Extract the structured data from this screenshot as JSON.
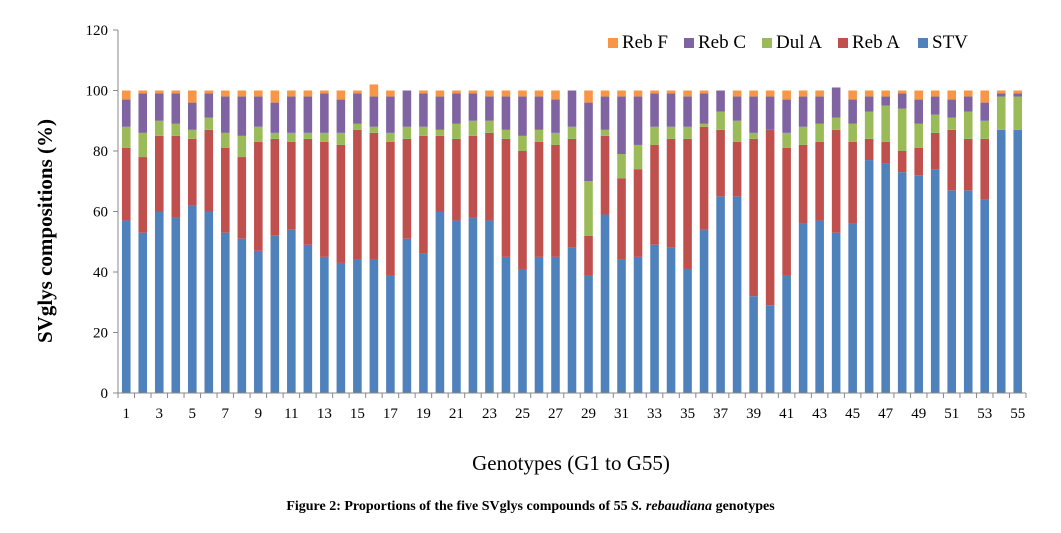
{
  "chart_data": {
    "type": "stacked-bar",
    "ylabel": "SVglys compositions (%)",
    "xlabel": "Genotypes (G1 to G55)",
    "ylim": [
      0,
      120
    ],
    "yticks": [
      0,
      20,
      40,
      60,
      80,
      100,
      120
    ],
    "x_tick_labels": [
      "1",
      "3",
      "5",
      "7",
      "9",
      "11",
      "13",
      "15",
      "17",
      "19",
      "21",
      "23",
      "25",
      "27",
      "29",
      "31",
      "33",
      "35",
      "37",
      "39",
      "41",
      "43",
      "45",
      "47",
      "49",
      "51",
      "53",
      "55"
    ],
    "legend_position": "top-right",
    "grid": false,
    "categories": [
      "1",
      "2",
      "3",
      "4",
      "5",
      "6",
      "7",
      "8",
      "9",
      "10",
      "11",
      "12",
      "13",
      "14",
      "15",
      "16",
      "17",
      "18",
      "19",
      "20",
      "21",
      "22",
      "23",
      "24",
      "25",
      "26",
      "27",
      "28",
      "29",
      "30",
      "31",
      "32",
      "33",
      "34",
      "35",
      "36",
      "37",
      "38",
      "39",
      "40",
      "41",
      "42",
      "43",
      "44",
      "45",
      "46",
      "47",
      "48",
      "49",
      "50",
      "51",
      "52",
      "53",
      "54",
      "55"
    ],
    "series": [
      {
        "name": "STV",
        "color": "#4f81bd",
        "values": [
          57,
          53,
          60,
          58,
          62,
          60,
          53,
          51,
          47,
          52,
          54,
          49,
          45,
          43,
          44,
          44,
          39,
          51,
          46,
          60,
          57,
          58,
          57,
          45,
          41,
          45,
          45,
          48,
          39,
          59,
          44,
          45,
          49,
          48,
          41,
          54,
          65,
          65,
          32,
          29,
          39,
          56,
          57,
          53,
          56,
          77,
          76,
          73,
          72,
          74,
          67,
          67,
          64,
          87,
          87
        ]
      },
      {
        "name": "Reb A",
        "color": "#c0504d",
        "values": [
          24,
          25,
          25,
          27,
          22,
          27,
          28,
          27,
          36,
          32,
          29,
          35,
          38,
          39,
          43,
          42,
          44,
          33,
          39,
          25,
          27,
          27,
          29,
          39,
          39,
          38,
          37,
          36,
          13,
          26,
          27,
          29,
          33,
          36,
          43,
          34,
          22,
          18,
          52,
          58,
          42,
          26,
          26,
          34,
          27,
          7,
          7,
          7,
          9,
          12,
          20,
          17,
          20,
          0,
          0
        ]
      },
      {
        "name": "Dul A",
        "color": "#9bbb59",
        "values": [
          7,
          8,
          5,
          4,
          3,
          4,
          5,
          7,
          5,
          2,
          3,
          2,
          3,
          4,
          2,
          2,
          3,
          4,
          3,
          2,
          5,
          5,
          4,
          3,
          5,
          4,
          4,
          4,
          18,
          2,
          8,
          8,
          6,
          4,
          4,
          1,
          6,
          7,
          2,
          0,
          5,
          6,
          6,
          4,
          6,
          9,
          12,
          14,
          8,
          6,
          4,
          9,
          6,
          11,
          11
        ]
      },
      {
        "name": "Reb C",
        "color": "#8064a2",
        "values": [
          9,
          13,
          9,
          10,
          9,
          8,
          12,
          13,
          10,
          10,
          12,
          12,
          13,
          11,
          10,
          10,
          12,
          12,
          11,
          11,
          10,
          9,
          8,
          11,
          13,
          11,
          11,
          12,
          26,
          11,
          19,
          16,
          11,
          11,
          10,
          10,
          7,
          8,
          12,
          11,
          11,
          10,
          9,
          10,
          8,
          5,
          3,
          5,
          8,
          6,
          6,
          5,
          6,
          1,
          1
        ]
      },
      {
        "name": "Reb F",
        "color": "#f79646",
        "values": [
          3,
          1,
          1,
          1,
          4,
          1,
          2,
          2,
          2,
          4,
          2,
          2,
          1,
          3,
          1,
          4,
          2,
          0,
          1,
          2,
          1,
          1,
          2,
          2,
          2,
          2,
          3,
          0,
          4,
          2,
          2,
          2,
          1,
          1,
          2,
          1,
          0,
          2,
          2,
          2,
          3,
          2,
          2,
          0,
          3,
          2,
          2,
          1,
          3,
          2,
          3,
          2,
          4,
          1,
          1
        ]
      }
    ],
    "legend_order": [
      "Reb F",
      "Reb C",
      "Dul A",
      "Reb A",
      "STV"
    ]
  },
  "caption": {
    "prefix": "Figure 2: Proportions of the five SVglys compounds of 55 ",
    "italic": "S. rebaudiana",
    "suffix": " genotypes"
  }
}
